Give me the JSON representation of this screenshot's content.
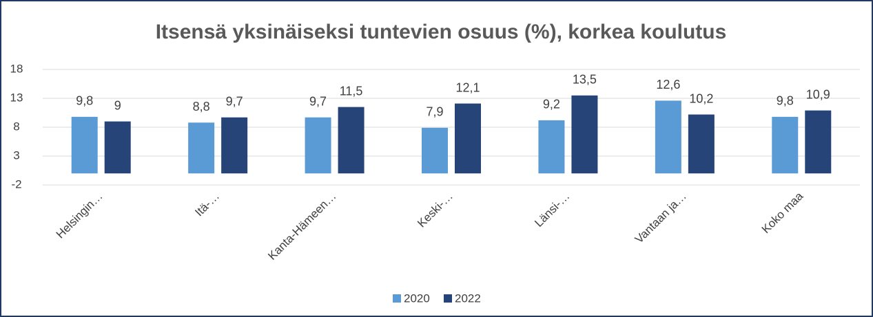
{
  "chart_data": {
    "type": "bar",
    "title": "Itsensä yksinäiseksi tuntevien osuus (%), korkea koulutus",
    "categories": [
      "Helsingin…",
      "Itä-…",
      "Kanta-Hämeen…",
      "Keski-…",
      "Länsi-…",
      "Vantaan ja…",
      "Koko maa"
    ],
    "series": [
      {
        "name": "2020",
        "color": "#5b9bd5",
        "values": [
          9.8,
          8.8,
          9.7,
          7.9,
          9.2,
          12.6,
          9.8
        ],
        "value_labels": [
          "9,8",
          "8,8",
          "9,7",
          "7,9",
          "9,2",
          "12,6",
          "9,8"
        ]
      },
      {
        "name": "2022",
        "color": "#264478",
        "values": [
          9,
          9.7,
          11.5,
          12.1,
          13.5,
          10.2,
          10.9
        ],
        "value_labels": [
          "9",
          "9,7",
          "11,5",
          "12,1",
          "13,5",
          "10,2",
          "10,9"
        ]
      }
    ],
    "ylim": [
      -2,
      18
    ],
    "yticks": [
      -2,
      3,
      8,
      13,
      18
    ],
    "grid": true,
    "legend": "bottom"
  }
}
